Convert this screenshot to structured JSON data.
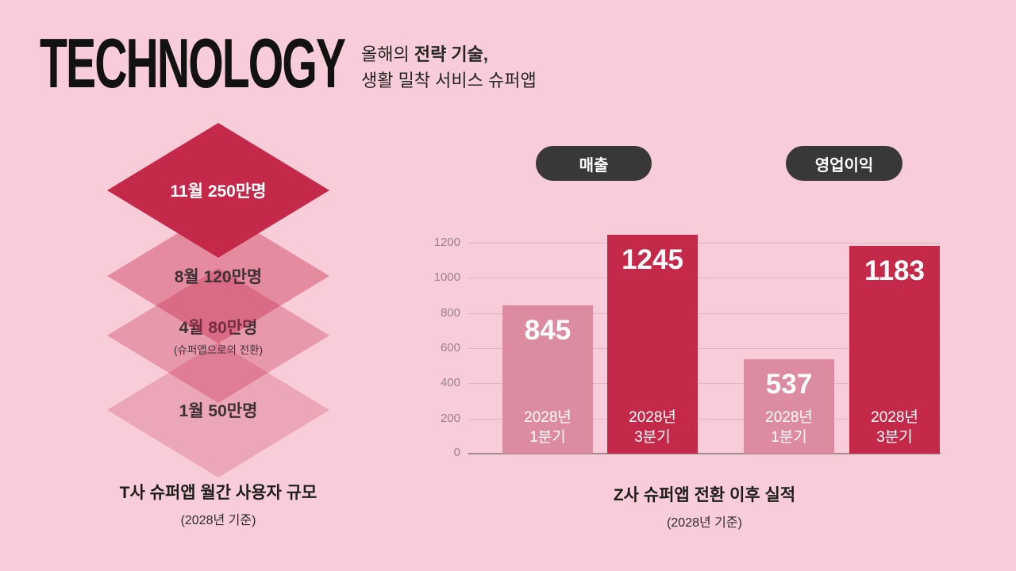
{
  "header": {
    "title": "TECHNOLOGY",
    "subtitle_prefix": "올해의 ",
    "subtitle_bold": "전략 기술,",
    "subtitle_line2": "생활 밀착 서비스 슈퍼앱"
  },
  "pyramid": {
    "layers": [
      {
        "label": "11월 250만명"
      },
      {
        "label": "8월 120만명"
      },
      {
        "label": "4월 80만명",
        "sub": "(슈퍼앱으로의 전환)"
      },
      {
        "label": "1월 50만명"
      }
    ],
    "caption": "T사 슈퍼앱 월간 사용자 규모",
    "caption_sub": "(2028년 기준)"
  },
  "chart": {
    "caption": "Z사 슈퍼앱 전환 이후 실적",
    "caption_sub": "(2028년 기준)"
  },
  "chart_data": {
    "type": "bar",
    "title": "Z사 슈퍼앱 전환 이후 실적 (2028년 기준)",
    "legend": [
      "매출",
      "영업이익"
    ],
    "legend_position": "top",
    "categories": [
      "2028년 1분기",
      "2028년 3분기",
      "2028년 1분기",
      "2028년 3분기"
    ],
    "series": [
      {
        "name": "매출",
        "categories": [
          "2028년 1분기",
          "2028년 3분기"
        ],
        "values": [
          845,
          1245
        ]
      },
      {
        "name": "영업이익",
        "categories": [
          "2028년 1분기",
          "2028년 3분기"
        ],
        "values": [
          537,
          1183
        ]
      }
    ],
    "bars": [
      {
        "value": 845,
        "cat_line1": "2028년",
        "cat_line2": "1분기",
        "tone": "light"
      },
      {
        "value": 1245,
        "cat_line1": "2028년",
        "cat_line2": "3분기",
        "tone": "dark"
      },
      {
        "value": 537,
        "cat_line1": "2028년",
        "cat_line2": "1분기",
        "tone": "light"
      },
      {
        "value": 1183,
        "cat_line1": "2028년",
        "cat_line2": "3분기",
        "tone": "dark"
      }
    ],
    "yticks": [
      0,
      200,
      400,
      600,
      800,
      1000,
      1200
    ],
    "ylim": [
      0,
      1320
    ],
    "grid": true
  },
  "colors": {
    "background": "#f8cdd9",
    "accent_dark": "#c5294a",
    "accent_light": "#dd8ba0",
    "legend_pill": "#383838",
    "gridline": "#ddb4c1",
    "text_dark": "#1d1d1d"
  }
}
